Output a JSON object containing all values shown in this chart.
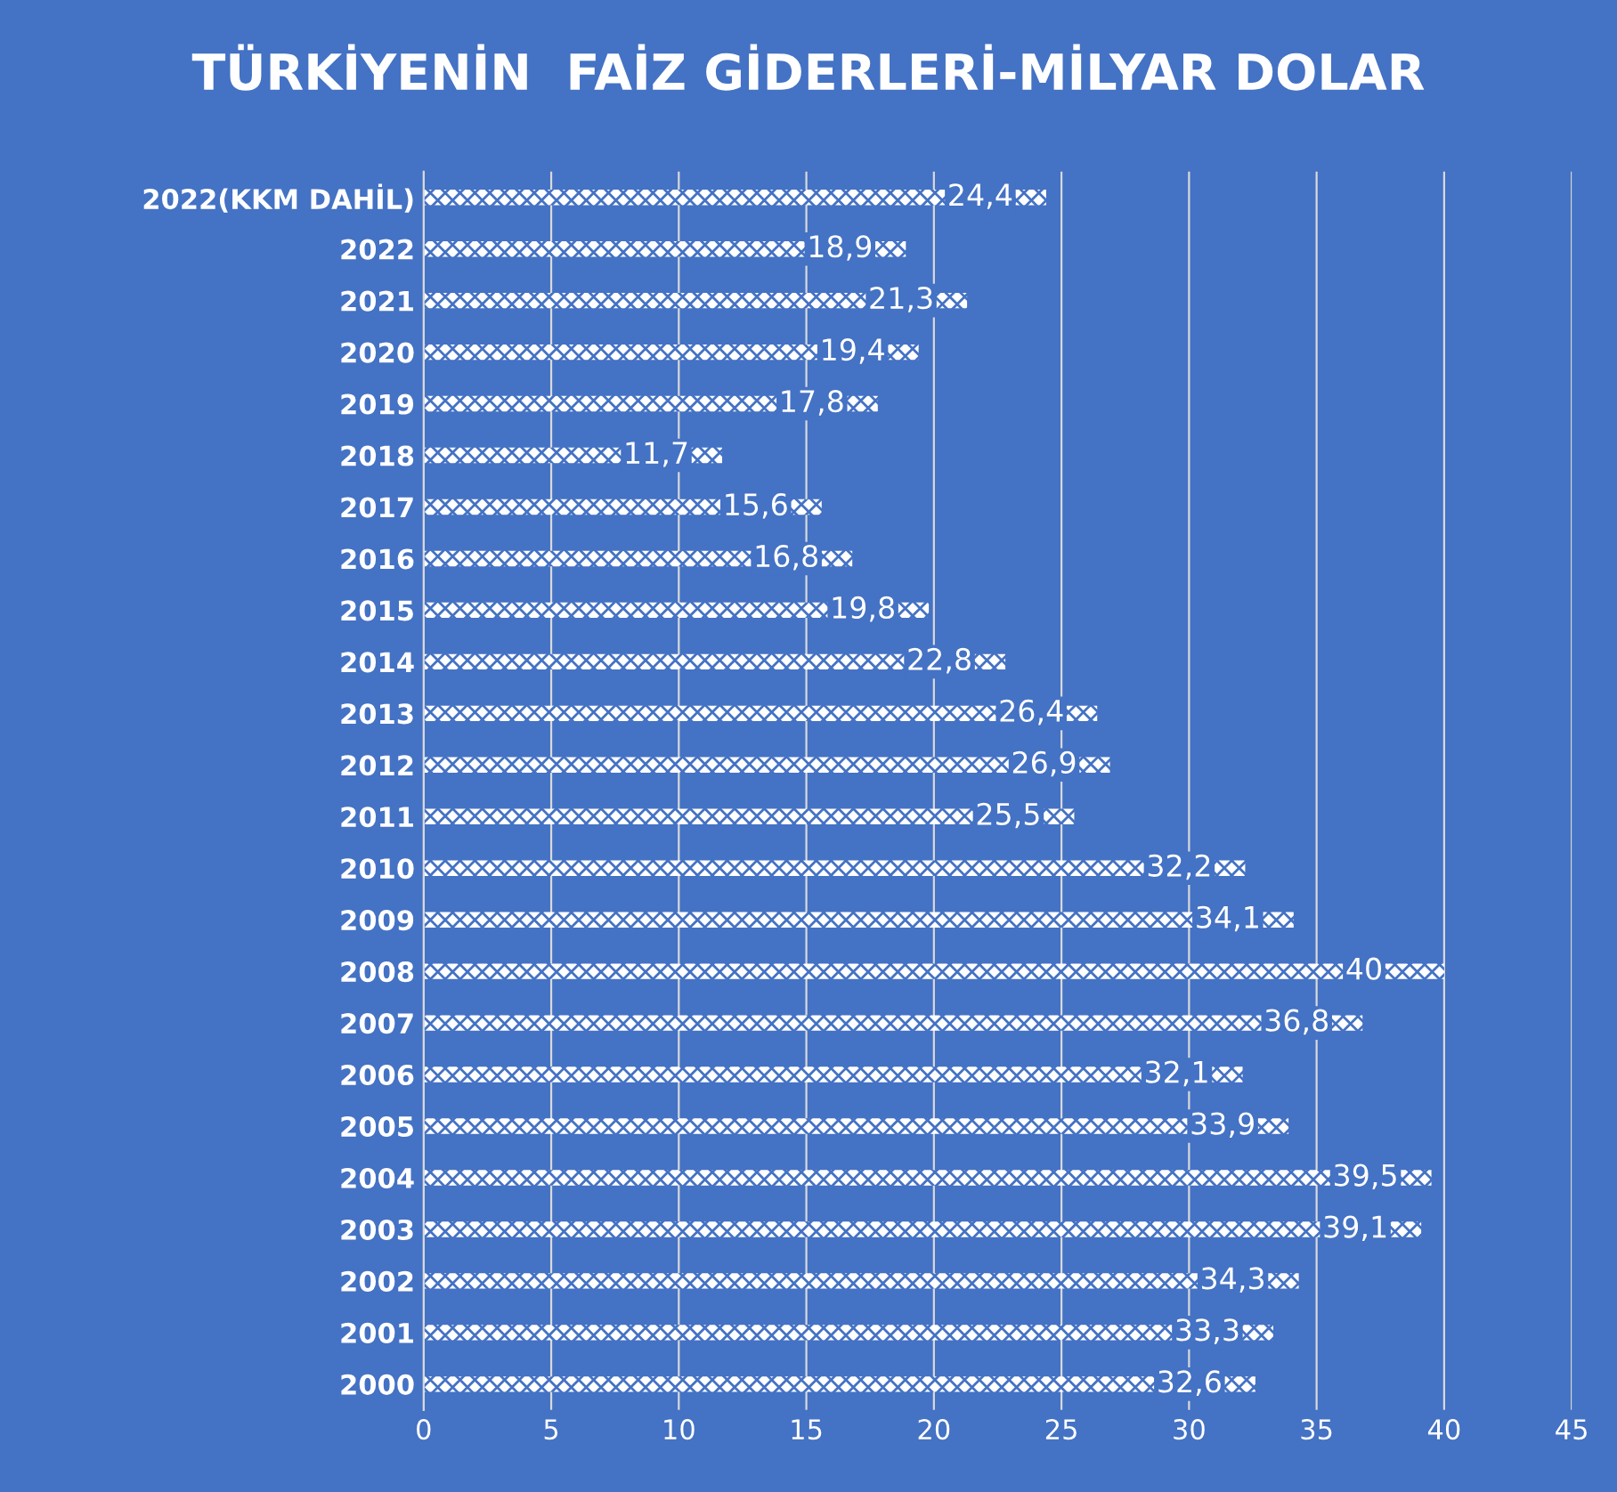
{
  "chart_data": {
    "type": "bar",
    "orientation": "horizontal",
    "title": "TÜRKİYENİN  FAİZ GİDERLERİ-MİLYAR DOLAR",
    "categories": [
      "2022(KKM DAHİL)",
      "2022",
      "2021",
      "2020",
      "2019",
      "2018",
      "2017",
      "2016",
      "2015",
      "2014",
      "2013",
      "2012",
      "2011",
      "2010",
      "2009",
      "2008",
      "2007",
      "2006",
      "2005",
      "2004",
      "2003",
      "2002",
      "2001",
      "2000"
    ],
    "series": [
      {
        "color": "#ffffff",
        "values": [
          24.4,
          18.9,
          21.3,
          19.4,
          17.8,
          11.7,
          15.6,
          16.8,
          19.8,
          22.8,
          26.4,
          26.9,
          25.5,
          32.2,
          34.1,
          40,
          36.8,
          32.1,
          33.9,
          39.5,
          39.1,
          34.3,
          33.3,
          32.6
        ],
        "value_labels": [
          "24,4",
          "18,9",
          "21,3",
          "19,4",
          "17,8",
          "11,7",
          "15,6",
          "16,8",
          "19,8",
          "22,8",
          "26,4",
          "26,9",
          "25,5",
          "32,2",
          "34,1",
          "40",
          "36,8",
          "32,1",
          "33,9",
          "39,5",
          "39,1",
          "34,3",
          "33,3",
          "32,6"
        ]
      }
    ],
    "xlim": [
      0,
      45
    ],
    "xticks": [
      0,
      5,
      10,
      15,
      20,
      25,
      30,
      35,
      40,
      45
    ],
    "grid": "x",
    "legend": false
  }
}
